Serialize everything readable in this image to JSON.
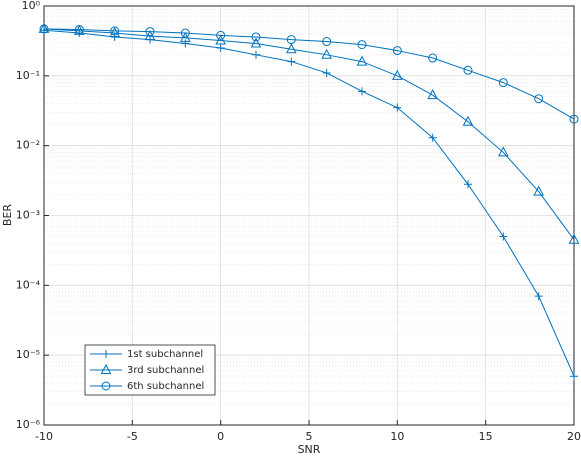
{
  "chart_data": {
    "type": "line",
    "x_label": "SNR",
    "y_label": "BER",
    "x": [
      -10,
      -8,
      -6,
      -4,
      -2,
      0,
      2,
      4,
      6,
      8,
      10,
      12,
      14,
      16,
      18,
      20
    ],
    "series": [
      {
        "name": "1st subchannel",
        "color": "#0072bd",
        "marker": "plus",
        "values": [
          0.45,
          0.41,
          0.36,
          0.33,
          0.29,
          0.25,
          0.2,
          0.16,
          0.11,
          0.06,
          0.035,
          0.013,
          0.0028,
          0.0005,
          7e-05,
          5e-06
        ]
      },
      {
        "name": "3rd subchannel",
        "color": "#0072bd",
        "marker": "triangle",
        "values": [
          0.47,
          0.44,
          0.41,
          0.37,
          0.35,
          0.32,
          0.29,
          0.24,
          0.2,
          0.16,
          0.1,
          0.053,
          0.022,
          0.008,
          0.0022,
          0.00045
        ]
      },
      {
        "name": "6th subchannel",
        "color": "#0072bd",
        "marker": "circle",
        "values": [
          0.47,
          0.46,
          0.44,
          0.43,
          0.41,
          0.38,
          0.36,
          0.33,
          0.31,
          0.28,
          0.23,
          0.18,
          0.12,
          0.08,
          0.047,
          0.024
        ]
      }
    ],
    "xlim": [
      -10,
      20
    ],
    "xticks": [
      -10,
      -5,
      0,
      5,
      10,
      15,
      20
    ],
    "ylim": [
      1e-06,
      1
    ],
    "y_scale": "log",
    "yticks": [
      {
        "value": 1e-06,
        "label": "10⁻⁶"
      },
      {
        "value": 1e-05,
        "label": "10⁻⁵"
      },
      {
        "value": 0.0001,
        "label": "10⁻⁴"
      },
      {
        "value": 0.001,
        "label": "10⁻³"
      },
      {
        "value": 0.01,
        "label": "10⁻²"
      },
      {
        "value": 0.1,
        "label": "10⁻¹"
      },
      {
        "value": 1,
        "label": "10⁰"
      }
    ],
    "grid": true,
    "minor_grid": true,
    "legend": "southwest"
  }
}
